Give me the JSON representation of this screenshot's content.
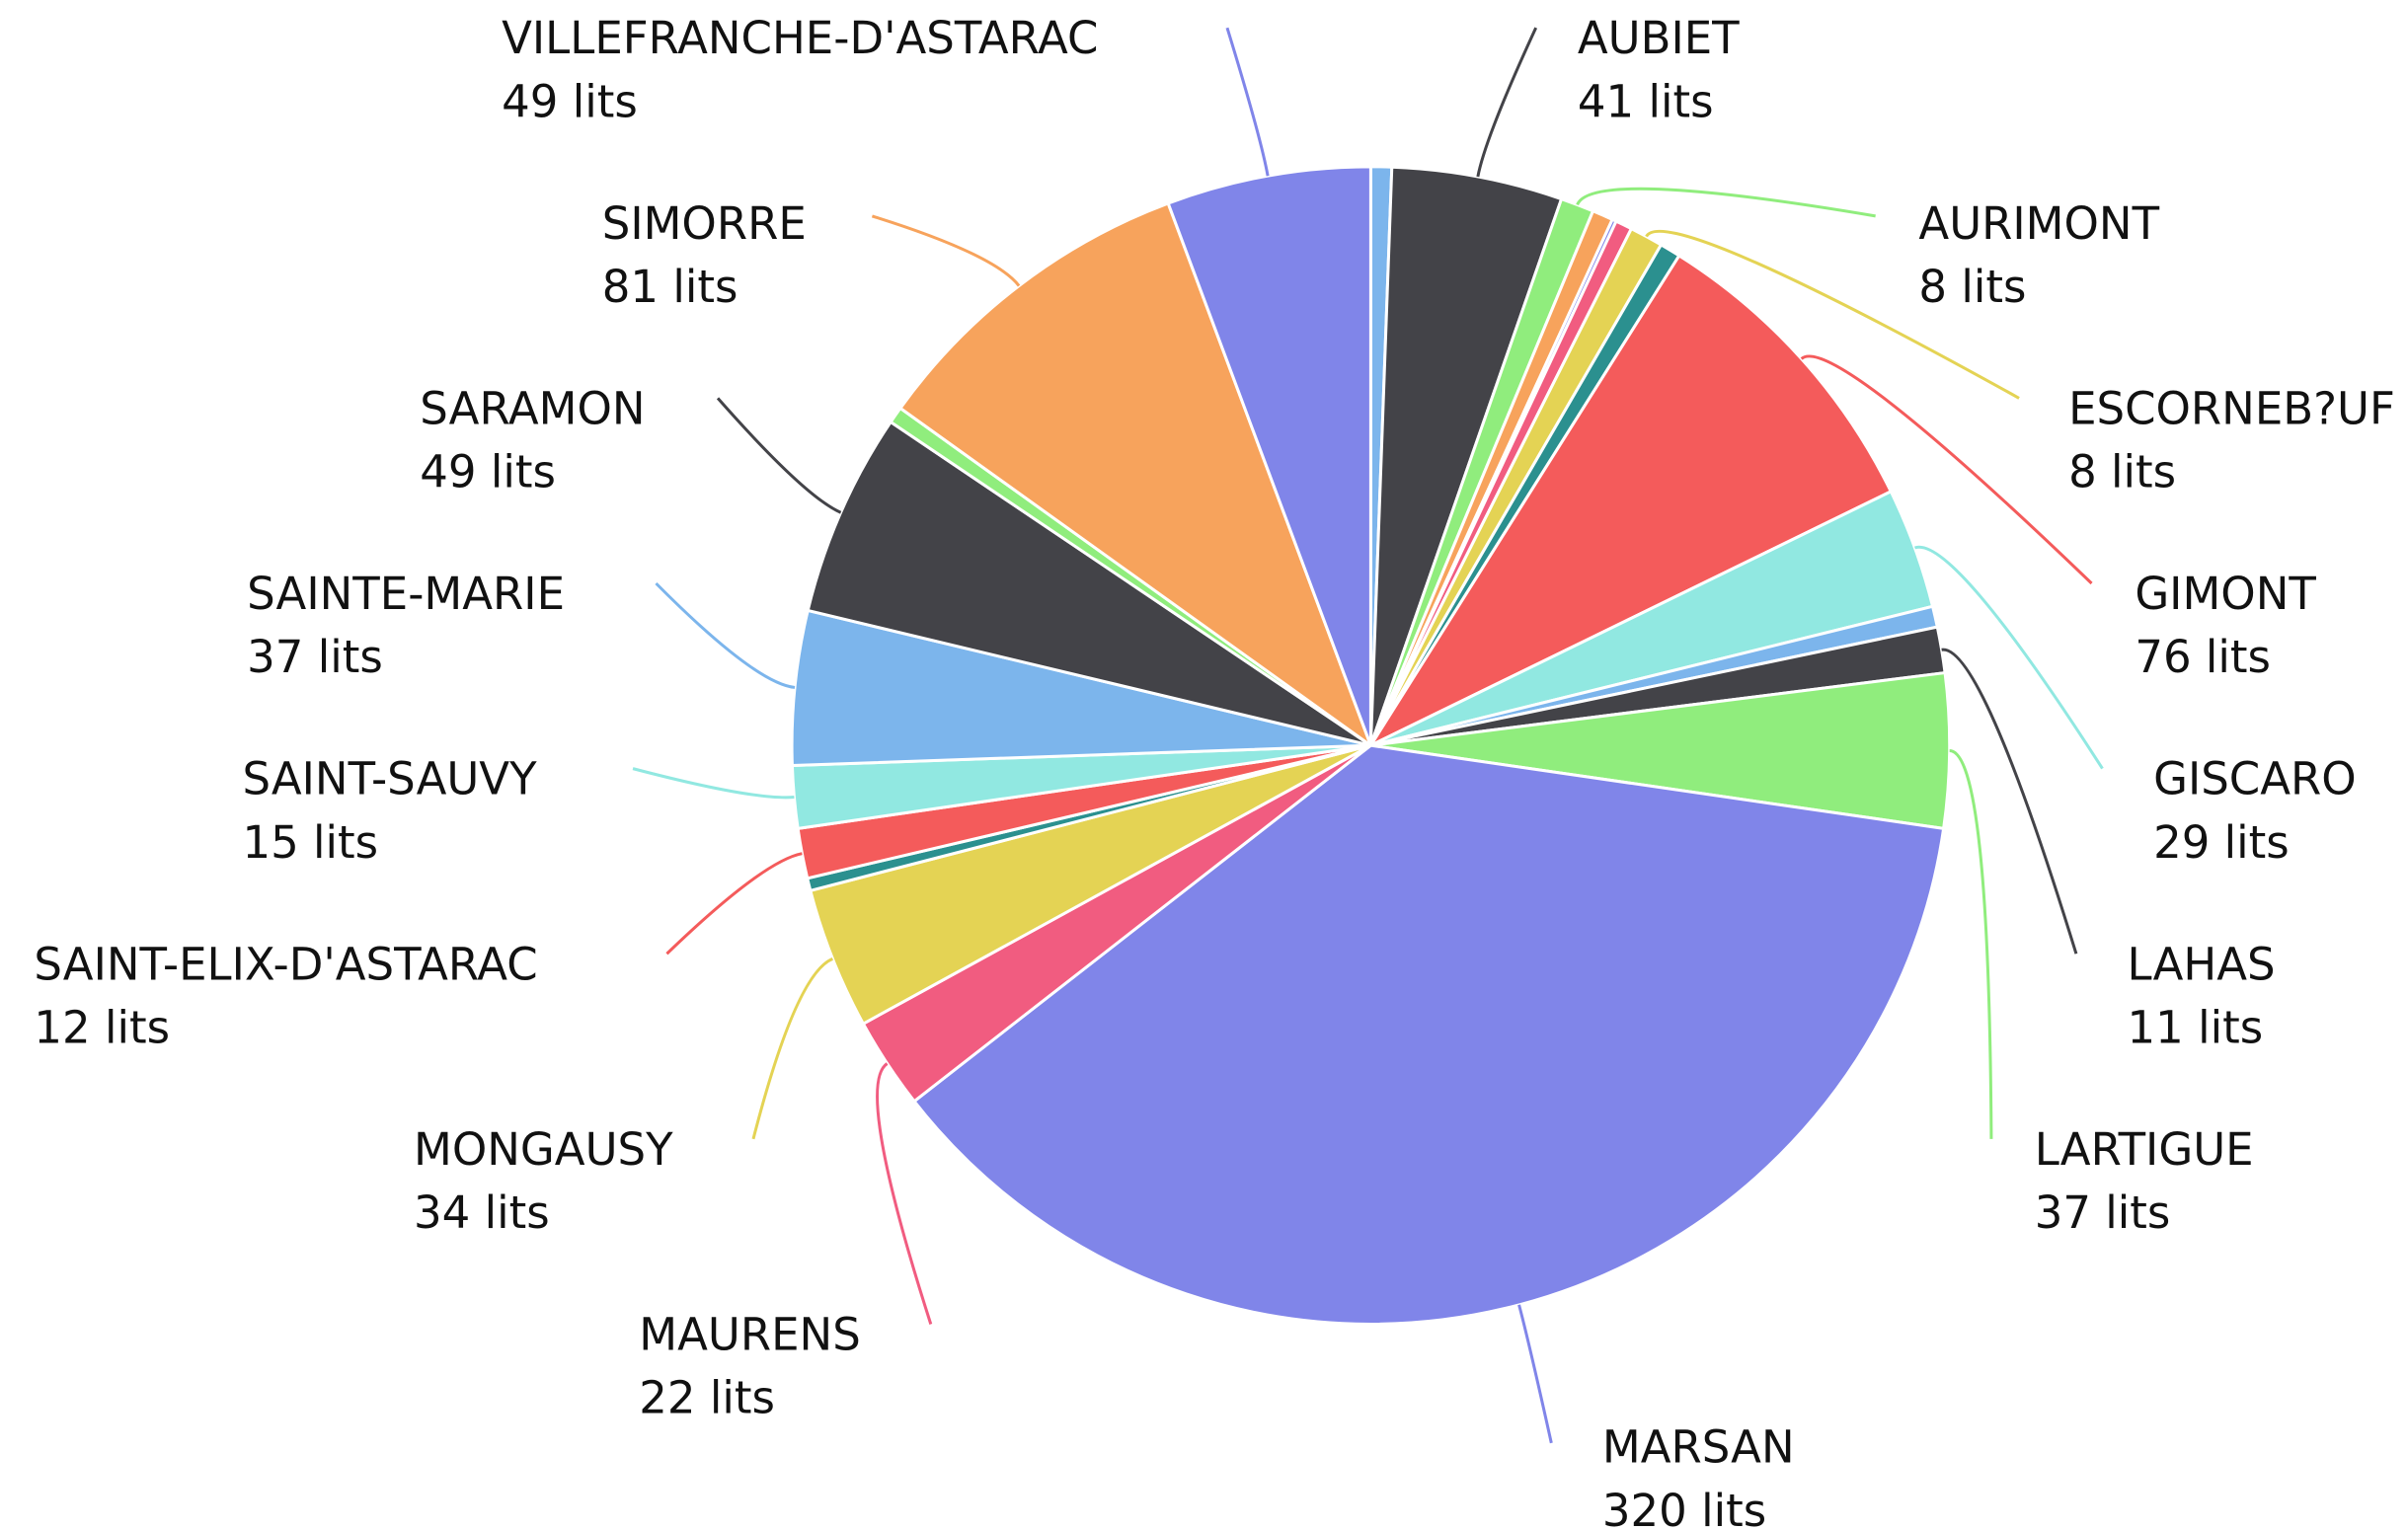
{
  "chart_data": {
    "type": "pie",
    "categories": [
      null,
      "AUBIET",
      "AURIMONT",
      null,
      null,
      null,
      "ESCORNEB?UF",
      null,
      "GIMONT",
      "GISCARO",
      null,
      "LAHAS",
      "LARTIGUE",
      "MARSAN",
      "MAURENS",
      "MONGAUSY",
      null,
      "SAINT-ELIX-D'ASTARAC",
      "SAINT-SAUVY",
      "SAINTE-MARIE",
      "SARAMON",
      null,
      "SIMORRE",
      "VILLEFRANCHE-D'ASTARAC"
    ],
    "values": [
      5,
      41,
      8,
      5,
      1,
      4,
      8,
      5,
      76,
      29,
      5,
      11,
      37,
      320,
      22,
      34,
      3,
      12,
      15,
      37,
      49,
      4,
      81,
      49
    ],
    "value_labels": [
      null,
      "41 lits",
      "8 lits",
      null,
      null,
      null,
      "8 lits",
      null,
      "76 lits",
      "29 lits",
      null,
      "11 lits",
      "37 lits",
      "320 lits",
      "22 lits",
      "34 lits",
      null,
      "12 lits",
      "15 lits",
      "37 lits",
      "49 lits",
      null,
      "81 lits",
      "49 lits"
    ],
    "colors": [
      "#7cb5ec",
      "#434348",
      "#90ed7d",
      "#f7a35c",
      "#8085e9",
      "#f15c80",
      "#e4d354",
      "#2b908f",
      "#f45b5b",
      "#91e8e1",
      "#7cb5ec",
      "#434348",
      "#90ed7d",
      "#8085e9",
      "#f15c80",
      "#e4d354",
      "#2b908f",
      "#f45b5b",
      "#91e8e1",
      "#7cb5ec",
      "#434348",
      "#90ed7d",
      "#f7a35c",
      "#8085e9"
    ]
  }
}
